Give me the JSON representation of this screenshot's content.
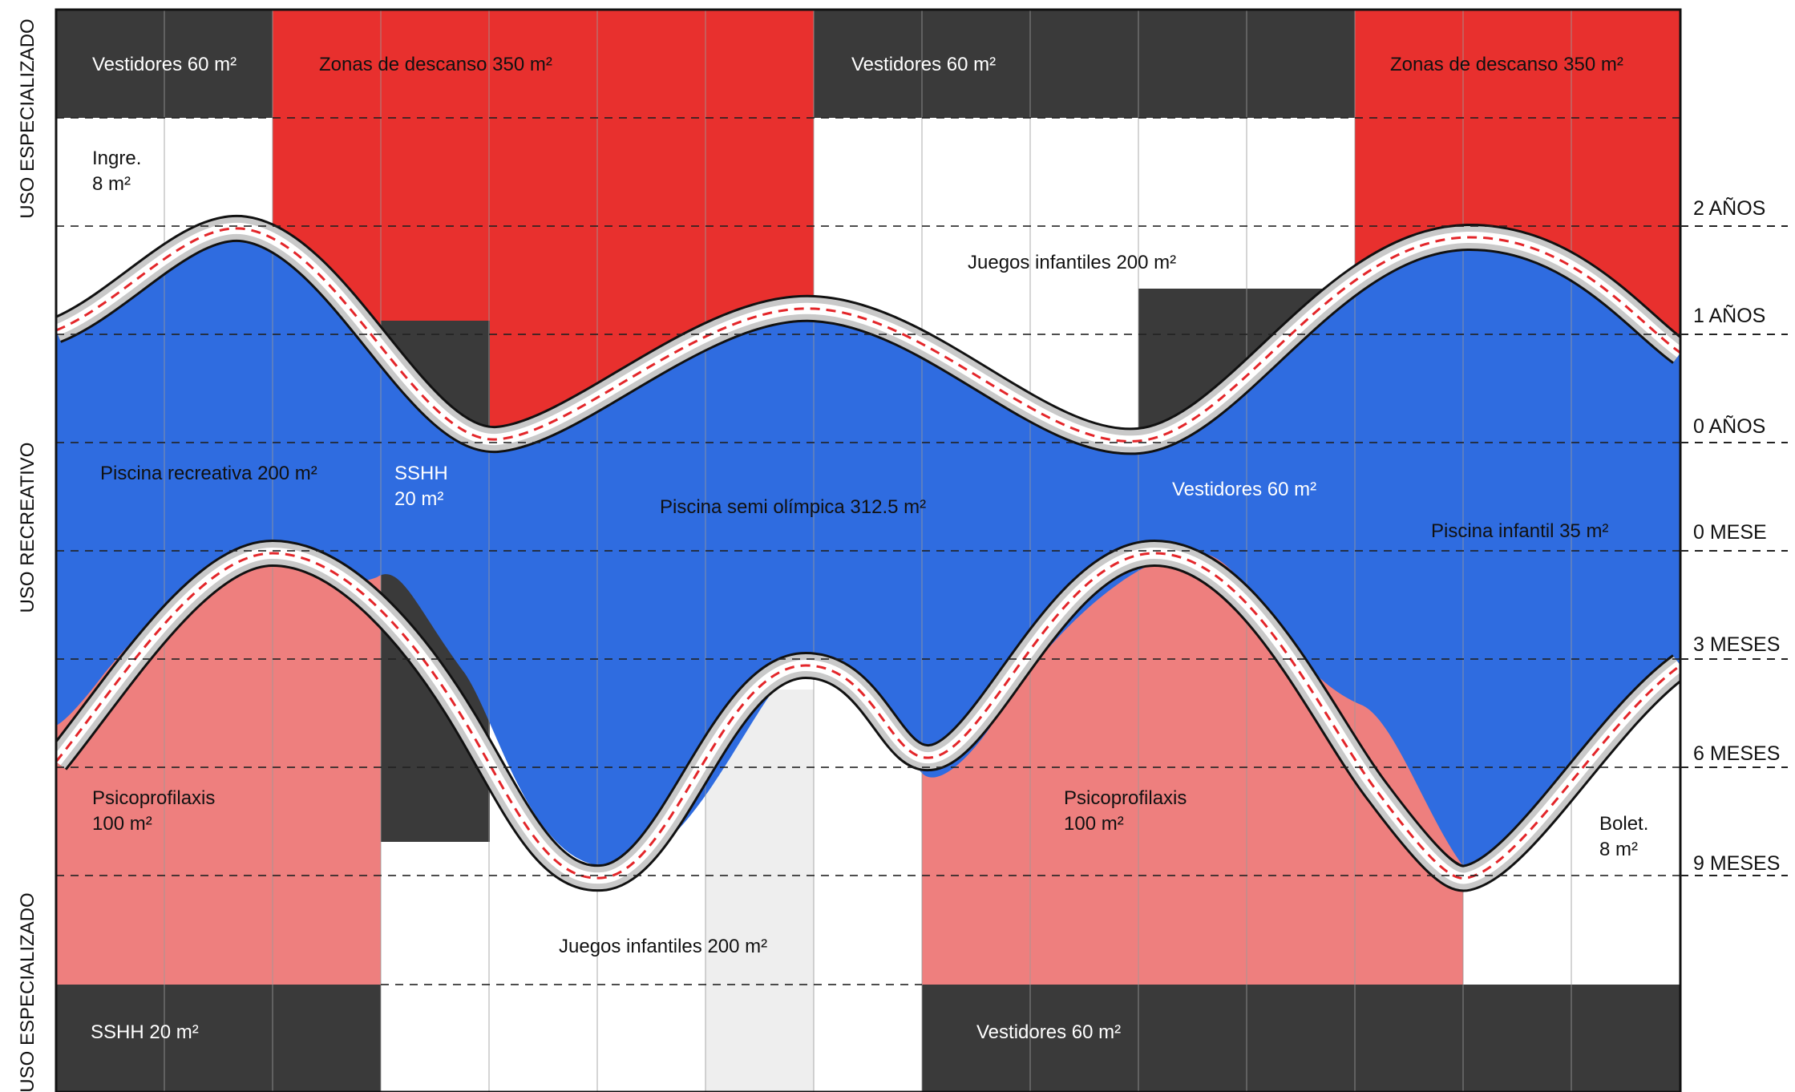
{
  "colors": {
    "dark": "#3a3a3a",
    "red": "#e8302e",
    "blue": "#2f6ce0",
    "pink": "#ee7f7e",
    "white": "#ffffff",
    "corridor": "#c9c9c9",
    "dash": "#e3262a"
  },
  "side_labels": {
    "top": "USO ESPECIALIZADO",
    "middle": "USO RECREATIVO",
    "bottom": "USO ESPECIALIZADO"
  },
  "axis_labels": [
    "2 AÑOS",
    "1 AÑOS",
    "0 AÑOS",
    "0 MESE",
    "3 MESES",
    "6 MESES",
    "9 MESES"
  ],
  "zones": {
    "vestidores_top_left": "Vestidores 60 m²",
    "descanso_left": "Zonas de descanso 350 m²",
    "vestidores_top_mid": "Vestidores 60 m²",
    "descanso_right": "Zonas de descanso 350 m²",
    "ingreso": [
      "Ingre.",
      "8 m²"
    ],
    "juegos_top": "Juegos infantiles 200 m²",
    "piscina_recreativa": "Piscina recreativa 200 m²",
    "sshh_mid": [
      "SSHH",
      "20 m²"
    ],
    "piscina_semi": "Piscina semi olímpica 312.5 m²",
    "vestidores_mid": "Vestidores 60 m²",
    "piscina_infantil": "Piscina infantil 35 m²",
    "psico_left": [
      "Psicoprofilaxis",
      "100 m²"
    ],
    "psico_right": [
      "Psicoprofilaxis",
      "100 m²"
    ],
    "boleteria": [
      "Bolet.",
      "8 m²"
    ],
    "juegos_bottom": "Juegos infantiles 200 m²",
    "sshh_bottom": "SSHH 20 m²",
    "vestidores_bottom": "Vestidores 60 m²"
  }
}
